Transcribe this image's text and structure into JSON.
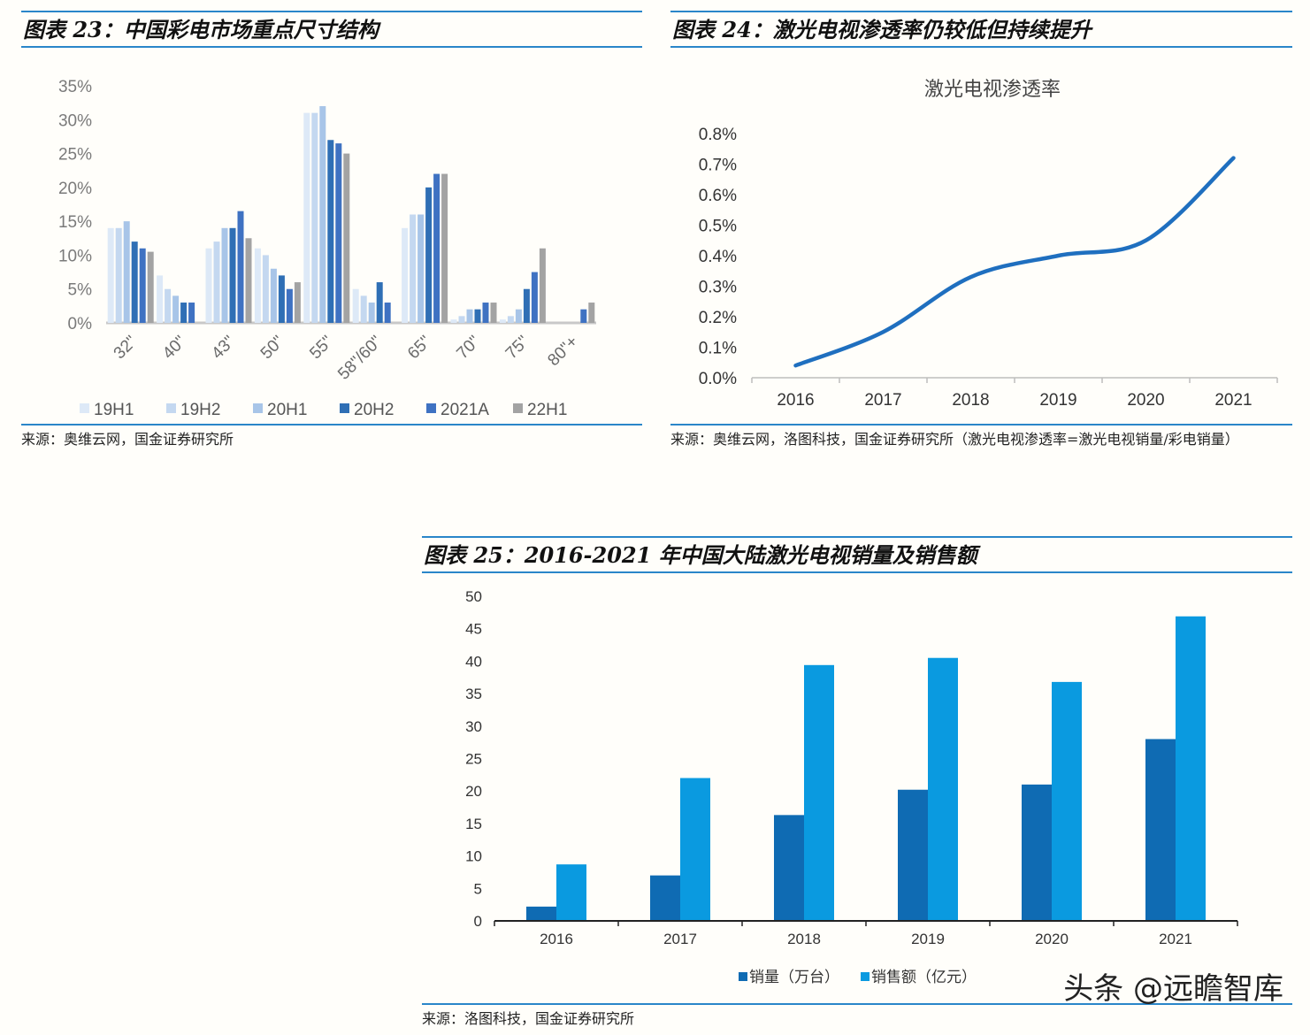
{
  "fig23": {
    "title": "图表 23：中国彩电市场重点尺寸结构",
    "source": "来源：奥维云网，国金证券研究所"
  },
  "fig24": {
    "title": "图表 24：激光电视渗透率仍较低但持续提升",
    "source": "来源：奥维云网，洛图科技，国金证券研究所（激光电视渗透率=激光电视销量/彩电销量）"
  },
  "fig25": {
    "title": "图表 25：2016-2021 年中国大陆激光电视销量及销售额",
    "source": "来源：洛图科技，国金证券研究所"
  },
  "watermark": "头条 @远瞻智库",
  "colors": {
    "rule": "#2a86c9",
    "s19H1": "#dde9f7",
    "s19H2": "#c4d8f0",
    "s20H1": "#a8c5e8",
    "s20H2": "#2f6fb5",
    "s2021A": "#3f72c2",
    "s22H1": "#a3a3a3",
    "line": "#1f6fbf",
    "sales": "#0f6bb3",
    "revenue": "#0a9ae0"
  },
  "chart_data": [
    {
      "type": "bar",
      "title": "",
      "categories": [
        "32\"",
        "40\"",
        "43\"",
        "50\"",
        "55\"",
        "58\"/60\"",
        "65\"",
        "70\"",
        "75\"",
        "80\"+"
      ],
      "y_ticks": [
        "0%",
        "5%",
        "10%",
        "15%",
        "20%",
        "25%",
        "30%",
        "35%"
      ],
      "ylim": [
        0,
        35
      ],
      "series": [
        {
          "name": "19H1",
          "values": [
            14,
            7,
            11,
            11,
            31,
            5,
            14,
            0.5,
            0.5,
            0
          ]
        },
        {
          "name": "19H2",
          "values": [
            14,
            5,
            12,
            10,
            31,
            4,
            16,
            1,
            1,
            0
          ]
        },
        {
          "name": "20H1",
          "values": [
            15,
            4,
            14,
            8,
            32,
            3,
            16,
            2,
            2,
            0
          ]
        },
        {
          "name": "20H2",
          "values": [
            12,
            3,
            14,
            7,
            27,
            6,
            20,
            2,
            5,
            0
          ]
        },
        {
          "name": "2021A",
          "values": [
            11,
            3,
            16.5,
            5,
            26.5,
            3,
            22,
            3,
            7.5,
            2
          ]
        },
        {
          "name": "22H1",
          "values": [
            10.5,
            0,
            12.5,
            6,
            25,
            0,
            22,
            3,
            11,
            3
          ]
        }
      ]
    },
    {
      "type": "line",
      "title": "激光电视渗透率",
      "x": [
        "2016",
        "2017",
        "2018",
        "2019",
        "2020",
        "2021"
      ],
      "y": [
        0.04,
        0.15,
        0.33,
        0.4,
        0.45,
        0.72
      ],
      "y_ticks": [
        "0.0%",
        "0.1%",
        "0.2%",
        "0.3%",
        "0.4%",
        "0.5%",
        "0.6%",
        "0.7%",
        "0.8%"
      ],
      "ylim": [
        0,
        0.8
      ]
    },
    {
      "type": "bar",
      "title": "",
      "categories": [
        "2016",
        "2017",
        "2018",
        "2019",
        "2020",
        "2021"
      ],
      "y_ticks": [
        "0",
        "5",
        "10",
        "15",
        "20",
        "25",
        "30",
        "35",
        "40",
        "45",
        "50"
      ],
      "ylim": [
        0,
        50
      ],
      "series": [
        {
          "name": "销量（万台）",
          "values": [
            2.2,
            7,
            16.3,
            20.2,
            21,
            28
          ]
        },
        {
          "name": "销售额（亿元）",
          "values": [
            8.7,
            22,
            39.4,
            40.5,
            36.8,
            46.9
          ]
        }
      ]
    }
  ]
}
